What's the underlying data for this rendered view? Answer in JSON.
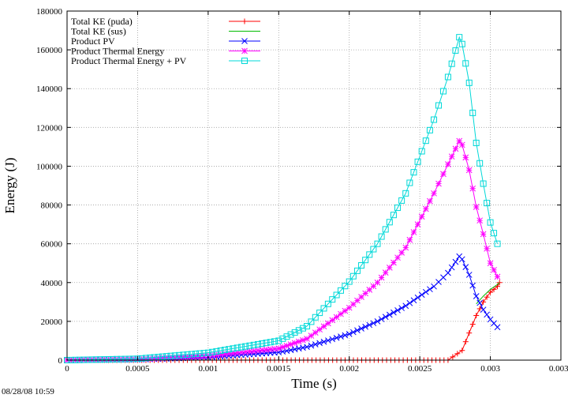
{
  "chart_data": {
    "type": "line",
    "title": "",
    "xlabel": "Time (s)",
    "ylabel": "Energy (J)",
    "xlim": [
      0,
      0.0035
    ],
    "ylim": [
      0,
      180000
    ],
    "x_ticks": [
      0,
      0.0005,
      0.001,
      0.0015,
      0.002,
      0.0025,
      0.003,
      0.0035
    ],
    "x_tick_labels": [
      "0",
      "0.0005",
      "0.001",
      "0.0015",
      "0.002",
      "0.0025",
      "0.003",
      "0.0035"
    ],
    "y_ticks": [
      0,
      20000,
      40000,
      60000,
      80000,
      100000,
      120000,
      140000,
      160000,
      180000
    ],
    "y_tick_labels": [
      "0",
      "20000",
      "40000",
      "60000",
      "80000",
      "100000",
      "120000",
      "140000",
      "160000",
      "180000"
    ],
    "grid": true,
    "legend_position": "top-left",
    "series": [
      {
        "name": "Total KE (puda)",
        "color": "#ff0000",
        "marker": "plus",
        "x": [
          0,
          0.0005,
          0.001,
          0.0015,
          0.002,
          0.0025,
          0.0027,
          0.0028,
          0.00285,
          0.0029,
          0.00295,
          0.003,
          0.00305,
          0.003065
        ],
        "y": [
          0,
          0,
          0,
          0,
          0,
          0,
          0,
          5000,
          14000,
          23000,
          30000,
          35000,
          38000,
          40000
        ]
      },
      {
        "name": "Total KE (sus)",
        "color": "#00bb00",
        "marker": "none",
        "x": [
          0.0029,
          0.00295,
          0.003,
          0.00305,
          0.003065
        ],
        "y": [
          29000,
          33000,
          36500,
          39000,
          40000
        ]
      },
      {
        "name": "Product PV",
        "color": "#0000ff",
        "marker": "x",
        "x": [
          0,
          0.0005,
          0.001,
          0.0015,
          0.0017,
          0.002,
          0.0022,
          0.0024,
          0.0026,
          0.0027,
          0.00278,
          0.0028,
          0.00285,
          0.0029,
          0.00295,
          0.003,
          0.00305
        ],
        "y": [
          0,
          300,
          1500,
          4000,
          6800,
          13500,
          20000,
          28000,
          38000,
          45000,
          53500,
          52000,
          44000,
          33000,
          26000,
          21000,
          17000
        ]
      },
      {
        "name": "Product Thermal Energy",
        "color": "#ff00ff",
        "marker": "star",
        "x": [
          0,
          0.0005,
          0.001,
          0.0015,
          0.0017,
          0.002,
          0.0022,
          0.0024,
          0.0026,
          0.0027,
          0.00278,
          0.0028,
          0.00285,
          0.0029,
          0.00295,
          0.003,
          0.00305
        ],
        "y": [
          0,
          400,
          2300,
          6000,
          11000,
          27000,
          40000,
          58000,
          86000,
          101000,
          113000,
          111000,
          98000,
          79000,
          65000,
          50000,
          43000
        ]
      },
      {
        "name": "Product Thermal Energy + PV",
        "color": "#00d8d8",
        "marker": "square",
        "x": [
          0,
          0.0005,
          0.001,
          0.0015,
          0.0017,
          0.002,
          0.0022,
          0.0024,
          0.0026,
          0.0027,
          0.00278,
          0.0028,
          0.00285,
          0.0029,
          0.00295,
          0.003,
          0.00305
        ],
        "y": [
          0,
          700,
          3800,
          10000,
          17500,
          40500,
          60000,
          86000,
          124000,
          146000,
          166500,
          163000,
          143000,
          112000,
          91000,
          71000,
          60000
        ]
      }
    ]
  },
  "footer": {
    "timestamp": "08/28/08 10:59"
  }
}
